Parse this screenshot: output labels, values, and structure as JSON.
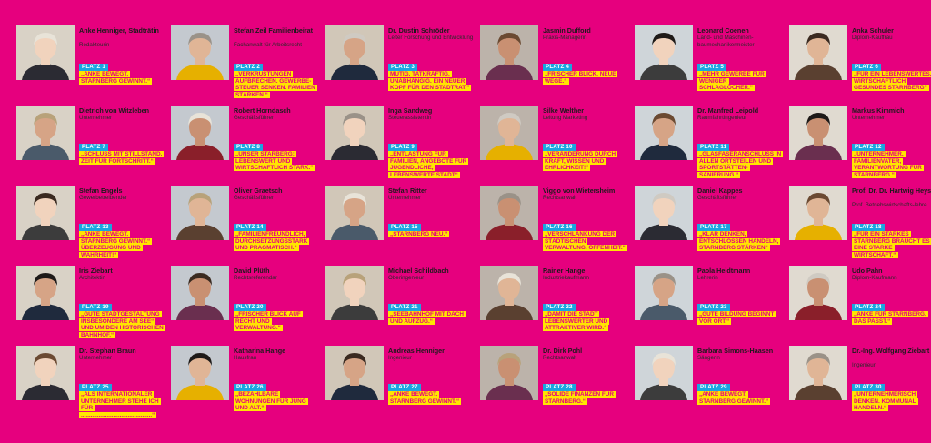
{
  "colors": {
    "background": "#e6007e",
    "platz_badge": "#19a7e0",
    "quote_highlight": "#ffe600",
    "quote_text": "#e6007e"
  },
  "candidates": [
    {
      "name": "Anke Henniger, Stadträtin",
      "role": "Redakteurin",
      "platz": "PLATZ 1",
      "quote": "„ANKE BEWEGT. STARNBERG GEWINNT.“"
    },
    {
      "name": "Stefan Zeil Familienbeirat",
      "role": "Fachanwalt für Arbeitsrecht",
      "platz": "PLATZ 2",
      "quote": "„VERKRUSTUNGEN AUFBRECHEN. GEWERBE-STEUER SENKEN. FAMILIEN STÄRKEN.“"
    },
    {
      "name": "Dr. Dustin Schröder",
      "role": "Leiter Forschung und Entwicklung",
      "platz": "PLATZ 3",
      "quote": "MUTIG. TATKRÄFTIG. UNABHÄNGIG. EIN NEUER KOPF FÜR DEN STADTRAT.“"
    },
    {
      "name": "Jasmin Dufford",
      "role": "Praxis-Managerin",
      "platz": "PLATZ 4",
      "quote": "„FRISCHER BLICK. NEUE WEGE.“"
    },
    {
      "name": "Leonard Coenen",
      "role": "Land- und Maschinen-baumechanikermeister",
      "platz": "PLATZ 5",
      "quote": "„MEHR GEWERBE FÜR WENIGER SCHLAGLÖCHER.“"
    },
    {
      "name": "Anka Schuler",
      "role": "Diplom-Kauffrau",
      "platz": "PLATZ 6",
      "quote": "„FÜR EIN LEBENSWERTES, WIRTSCHAFTLICH GESUNDES STARNBERG“"
    },
    {
      "name": "Dietrich von Witzleben",
      "role": "Unternehmer",
      "platz": "PLATZ 7",
      "quote": "„SCHLUSS MIT STILLSTAND. ZEIT FÜR FORTSCHRITT.“"
    },
    {
      "name": "Robert Horndasch",
      "role": "Geschäftsführer",
      "platz": "PLATZ 8",
      "quote": "„UNSER STARBERG: LEBENSWERT UND WIRTSCHAFTLICH STARK.“"
    },
    {
      "name": "Inga Sandweg",
      "role": "Steuerassistentin",
      "platz": "PLATZ 9",
      "quote": "„ENTLASTUNG FÜR FAMILIEN, ANGEBOTE FÜR JUGENDLICHE, LEBENSWERTE STADT“"
    },
    {
      "name": "Silke Welther",
      "role": "Leitung Marketing",
      "platz": "PLATZ 10",
      "quote": "„VERÄNDERUNG DURCH KRAFT, WISSEN UND EHRLICHKEIT!“"
    },
    {
      "name": "Dr. Manfred Leipold",
      "role": "Raumfahrtingenieur",
      "platz": "PLATZ 11",
      "quote": "„GLASFASERANSCHLUSS IN ALLEN ORTSTEILEN UND SPORTSTÄTTEN-SANIERUNG.“"
    },
    {
      "name": "Markus Kimmich",
      "role": "Unternehmer",
      "platz": "PLATZ 12",
      "quote": "„UNTERNEHMER, FAMILIENVATER, VERANTWORTUNG FÜR STARNBERG.“"
    },
    {
      "name": "Stefan Engels",
      "role": "Gewerbetreibender",
      "platz": "PLATZ 13",
      "quote": "„ANKE BEWEGT. STARNBERG GEWINNT.“ ÜBERZEUGUNG UND WAHRHEIT!“"
    },
    {
      "name": "Oliver Graetsch",
      "role": "Geschäftsführer",
      "platz": "PLATZ 14",
      "quote": "„FAMILIENFREUNDLICH, DURCHSETZUNGSSTARK UND PRAGMATISCH.“"
    },
    {
      "name": "Stefan Ritter",
      "role": "Unternehmer",
      "platz": "PLATZ 15",
      "quote": "„STARNBERG NEU.“"
    },
    {
      "name": "Viggo von Wietersheim",
      "role": "Rechtsanwalt",
      "platz": "PLATZ 16",
      "quote": "„VERSCHLANKUNG DER STÄDTISCHEN VERWALTUNG. OFFENHEIT.“"
    },
    {
      "name": "Daniel Kappes",
      "role": "Geschäftsführer",
      "platz": "PLATZ 17",
      "quote": "„KLAR DENKEN, ENTSCHLOSSEN HANDELN, STARNBERG STÄRKEN“"
    },
    {
      "name": "Prof. Dr. Dr. Hartwig Heyser",
      "role": "Prof. Betriebswirtschafts-lehre",
      "platz": "PLATZ 18",
      "quote": "„FÜR EIN STARKES STARNBERG BRAUCHT ES EINE STARKE WIRTSCHAFT.“"
    },
    {
      "name": "Iris Ziebart",
      "role": "Architektin",
      "platz": "PLATZ 19",
      "quote": "„GUTE STADTGESTALTUNG INSBESONDERE AM SEE“ UND UM DEN HISTORISCHEN BAHNHOF.“"
    },
    {
      "name": "David Plüth",
      "role": "Rechtsreferendar",
      "platz": "PLATZ 20",
      "quote": "„FRISCHER BLICK AUF RECHT UND VERWALTUNG.“"
    },
    {
      "name": "Michael Schildbach",
      "role": "Oberingenieur",
      "platz": "PLATZ 21",
      "quote": "„SEEBAHNHOF MIT DACH UND AUFZUG.“"
    },
    {
      "name": "Rainer Hange",
      "role": "Industriekaufmann",
      "platz": "PLATZ 22",
      "quote": "„DAMIT DIE STADT LEBENSWERTER UND ATTRAKTIVER WIRD.“"
    },
    {
      "name": "Paola Heidtmann",
      "role": "Lehrerin",
      "platz": "PLATZ 23",
      "quote": "„GUTE BILDUNG BEGINNT VOR ORT.“"
    },
    {
      "name": "Udo Pahn",
      "role": "Diplom-Kaufmann",
      "platz": "PLATZ 24",
      "quote": "„ANKE FÜR STARNBERG. DAS PASST.“"
    },
    {
      "name": "Dr. Stephan Braun",
      "role": "Unternehmer",
      "platz": "PLATZ 25",
      "quote": "„ALS INTERNATIONALER UNTERNEHMER STEHE ICH FÜR ............................................“"
    },
    {
      "name": "Katharina Hange",
      "role": "Hausfrau",
      "platz": "PLATZ 26",
      "quote": "„BEZAHLBARE WOHNUNGEN FÜR JUNG UND ALT.“"
    },
    {
      "name": "Andreas Henniger",
      "role": "Ingenieur",
      "platz": "PLATZ 27",
      "quote": "„ANKE BEWEGT. STARNBERG GEWINNT.“"
    },
    {
      "name": "Dr. Dirk Pohl",
      "role": "Rechtsanwalt",
      "platz": "PLATZ 28",
      "quote": "„SOLIDE FINANZEN FÜR STARNBERG.“"
    },
    {
      "name": "Barbara Simons-Haasen",
      "role": "Sängerin",
      "platz": "PLATZ 29",
      "quote": "„ANKE BEWEGT. STARNBERG GEWINNT.“"
    },
    {
      "name": "Dr.-Ing. Wolfgang Ziebart",
      "role": "Ingenieur",
      "platz": "PLATZ 30",
      "quote": "„UNTERNEHMERISCH DENKEN. KOMMUNAL HANDELN.“"
    }
  ]
}
